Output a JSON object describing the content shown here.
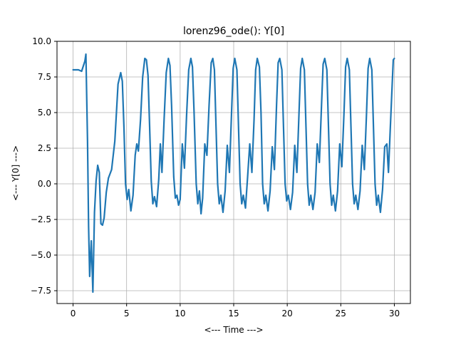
{
  "chart_data": {
    "type": "line",
    "title": "lorenz96_ode(): Y[0]",
    "xlabel": "<--- Time --->",
    "ylabel": "<--- Y[0] --->",
    "xlim": [
      -1.5,
      31.5
    ],
    "ylim": [
      -8.4,
      10.0
    ],
    "xticks": [
      0,
      5,
      10,
      15,
      20,
      25,
      30
    ],
    "xtick_labels": [
      "0",
      "5",
      "10",
      "15",
      "20",
      "25",
      "30"
    ],
    "yticks": [
      -7.5,
      -5.0,
      -2.5,
      0.0,
      2.5,
      5.0,
      7.5,
      10.0
    ],
    "ytick_labels": [
      "−7.5",
      "−5.0",
      "−2.5",
      "0.0",
      "2.5",
      "5.0",
      "7.5",
      "10.0"
    ],
    "grid": true,
    "colors": {
      "line": "#1f77b4",
      "grid": "#b0b0b0",
      "axes": "#000000"
    },
    "series": [
      {
        "x": [
          0,
          0.5,
          0.8,
          1.1,
          1.2,
          1.35,
          1.45,
          1.55,
          1.7,
          1.85,
          2.0,
          2.15,
          2.3,
          2.45,
          2.6,
          2.75,
          2.9,
          3.1,
          3.3,
          3.6,
          3.9,
          4.2,
          4.45,
          4.6,
          4.75,
          4.9,
          5.05,
          5.2,
          5.4,
          5.6,
          5.8,
          5.95,
          6.1,
          6.3,
          6.5,
          6.7,
          6.85,
          7.0,
          7.15,
          7.3,
          7.45,
          7.6,
          7.8,
          8.0,
          8.15,
          8.3,
          8.5,
          8.7,
          8.9,
          9.05,
          9.2,
          9.4,
          9.55,
          9.7,
          9.85,
          10.0,
          10.2,
          10.4,
          10.6,
          10.8,
          11.0,
          11.15,
          11.3,
          11.5,
          11.65,
          11.8,
          11.95,
          12.1,
          12.3,
          12.5,
          12.7,
          12.9,
          13.05,
          13.2,
          13.35,
          13.5,
          13.65,
          13.8,
          14.0,
          14.2,
          14.4,
          14.6,
          14.8,
          14.95,
          15.1,
          15.3,
          15.45,
          15.6,
          15.75,
          15.9,
          16.1,
          16.3,
          16.5,
          16.7,
          16.9,
          17.05,
          17.2,
          17.4,
          17.55,
          17.7,
          17.85,
          18.0,
          18.2,
          18.4,
          18.6,
          18.8,
          19.0,
          19.15,
          19.3,
          19.5,
          19.65,
          19.8,
          19.95,
          20.1,
          20.3,
          20.5,
          20.7,
          20.9,
          21.1,
          21.25,
          21.4,
          21.6,
          21.75,
          21.9,
          22.05,
          22.2,
          22.4,
          22.6,
          22.8,
          23.0,
          23.2,
          23.35,
          23.5,
          23.7,
          23.85,
          24.0,
          24.15,
          24.3,
          24.5,
          24.7,
          24.9,
          25.1,
          25.3,
          25.45,
          25.6,
          25.8,
          25.95,
          26.1,
          26.25,
          26.4,
          26.6,
          26.8,
          27.0,
          27.2,
          27.4,
          27.55,
          27.7,
          27.9,
          28.05,
          28.2,
          28.35,
          28.5,
          28.7,
          28.9,
          29.1,
          29.3,
          29.45,
          29.6,
          29.8,
          29.9,
          30.0
        ],
        "y": [
          8.0,
          8.0,
          7.9,
          8.6,
          9.1,
          3.0,
          -3.0,
          -6.5,
          -4.0,
          -7.6,
          -2.0,
          0.2,
          1.3,
          0.8,
          -2.8,
          -2.9,
          -2.4,
          -0.6,
          0.4,
          1.0,
          3.0,
          7.0,
          7.8,
          7.2,
          4.0,
          0.0,
          -1.1,
          -0.4,
          -1.9,
          -0.8,
          2.0,
          2.8,
          2.3,
          4.5,
          7.5,
          8.8,
          8.7,
          7.6,
          4.0,
          0.2,
          -1.4,
          -0.9,
          -1.6,
          0.3,
          2.8,
          0.8,
          4.5,
          7.8,
          8.8,
          8.3,
          5.5,
          0.5,
          -1.0,
          -0.8,
          -1.5,
          -1.1,
          2.8,
          1.1,
          4.8,
          8.0,
          8.8,
          8.2,
          5.0,
          0.0,
          -1.4,
          -0.5,
          -2.1,
          -1.0,
          2.8,
          2.0,
          5.5,
          8.5,
          8.8,
          8.0,
          4.0,
          0.0,
          -1.4,
          -0.8,
          -2.0,
          -0.5,
          2.7,
          0.8,
          5.0,
          8.1,
          8.8,
          8.0,
          4.0,
          0.0,
          -1.4,
          -0.8,
          -1.7,
          0.5,
          2.8,
          0.8,
          4.5,
          8.0,
          8.8,
          8.2,
          5.0,
          0.0,
          -1.4,
          -0.8,
          -1.9,
          -0.5,
          2.6,
          1.0,
          5.5,
          8.5,
          8.8,
          8.0,
          4.0,
          0.0,
          -1.2,
          -0.8,
          -1.8,
          -0.6,
          2.7,
          0.8,
          5.0,
          8.1,
          8.8,
          8.0,
          4.0,
          0.0,
          -1.5,
          -0.8,
          -1.8,
          -0.6,
          2.8,
          1.5,
          5.5,
          8.4,
          8.8,
          8.0,
          4.0,
          0.0,
          -1.5,
          -0.8,
          -1.9,
          -0.5,
          2.8,
          1.2,
          5.0,
          8.2,
          8.8,
          8.0,
          4.0,
          0.0,
          -1.4,
          -0.8,
          -1.8,
          -0.5,
          2.7,
          1.0,
          4.9,
          8.1,
          8.8,
          8.0,
          4.0,
          0.0,
          -1.5,
          -0.8,
          -2.0,
          -0.4,
          2.6,
          2.8,
          0.8,
          3.5,
          7.0,
          8.7,
          8.8
        ]
      }
    ]
  }
}
